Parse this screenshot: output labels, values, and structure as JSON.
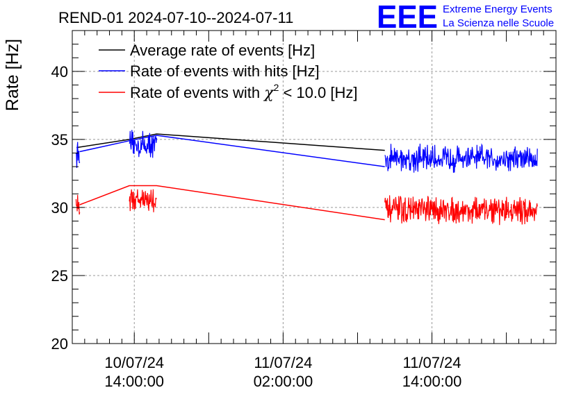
{
  "header": {
    "title": "REND-01 2024-07-10--2024-07-11",
    "logo_text": "EEE",
    "logo_line1": "Extreme Energy Events",
    "logo_line2": "La Scienza nelle Scuole"
  },
  "colors": {
    "average": "#000000",
    "hits": "#0000ff",
    "chi2": "#ff0000",
    "grid": "#999999",
    "logo": "#0000ff"
  },
  "chart_data": {
    "type": "line",
    "title": "REND-01 2024-07-10--2024-07-11",
    "ylabel": "Rate [Hz]",
    "xlabel": "",
    "x_unit": "hours since 2024-07-10 00:00",
    "xlim": [
      9.0,
      48.0
    ],
    "ylim": [
      20,
      43
    ],
    "yticks": [
      20,
      25,
      30,
      35,
      40
    ],
    "xticks": [
      {
        "x": 14,
        "line1": "10/07/24",
        "line2": "14:00:00"
      },
      {
        "x": 26,
        "line1": "11/07/24",
        "line2": "02:00:00"
      },
      {
        "x": 38,
        "line1": "11/07/24",
        "line2": "14:00:00"
      }
    ],
    "grid": true,
    "legend_position": "top-left",
    "segments": [
      {
        "x_start": 9.3,
        "x_end": 9.6
      },
      {
        "x_start": 13.6,
        "x_end": 15.8
      },
      {
        "x_start": 34.2,
        "x_end": 46.5
      }
    ],
    "series": [
      {
        "name": "Average rate of events [Hz]",
        "color": "#000000",
        "legend_label": "Average rate of events [Hz]",
        "points": [
          [
            9.35,
            34.4
          ],
          [
            13.6,
            35.0
          ],
          [
            15.8,
            35.4
          ],
          [
            34.2,
            34.2
          ]
        ],
        "noise": 0
      },
      {
        "name": "Rate of events with hits [Hz]",
        "color": "#0000ff",
        "legend_label": "Rate of events with hits [Hz]",
        "segment_means": [
          34.0,
          34.6,
          33.6
        ],
        "noise": 0.9,
        "points": [
          [
            9.6,
            34.1
          ],
          [
            13.6,
            34.9
          ],
          [
            15.8,
            35.3
          ],
          [
            34.2,
            33.0
          ]
        ]
      },
      {
        "name": "Rate of events with χ² < 10.0 [Hz]",
        "color": "#ff0000",
        "legend_label_main": "Rate of events with ",
        "legend_label_chi": "χ",
        "legend_label_sup": "2",
        "legend_label_tail": " < 10.0 [Hz]",
        "segment_means": [
          30.2,
          30.6,
          29.8
        ],
        "noise": 0.9,
        "points": [
          [
            9.6,
            30.2
          ],
          [
            13.6,
            31.6
          ],
          [
            15.8,
            31.6
          ],
          [
            34.2,
            29.1
          ]
        ]
      }
    ]
  }
}
